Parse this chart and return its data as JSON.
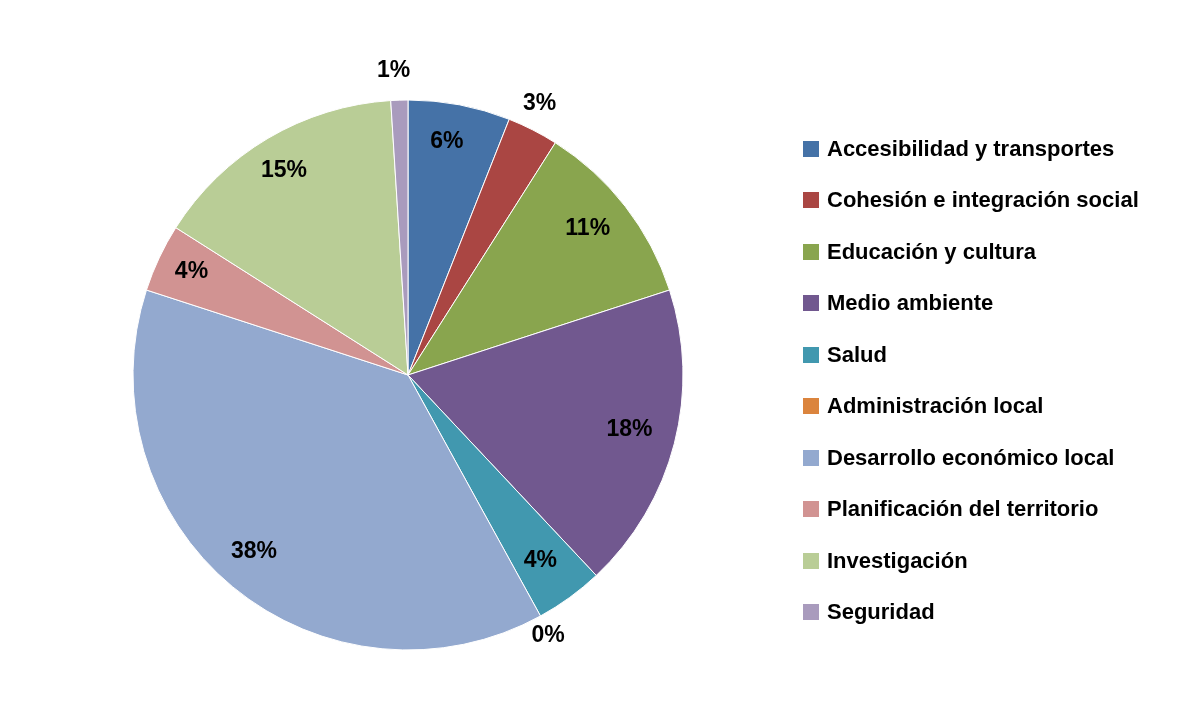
{
  "chart_data": {
    "type": "pie",
    "categories": [
      "Accesibilidad y transportes",
      "Cohesión e integración social",
      "Educación y cultura",
      "Medio ambiente",
      "Salud",
      "Administración local",
      "Desarrollo económico local",
      "Planificación del territorio",
      "Investigación",
      "Seguridad"
    ],
    "values": [
      6,
      3,
      11,
      18,
      4,
      0,
      38,
      4,
      15,
      1
    ],
    "value_labels": [
      "6%",
      "3%",
      "11%",
      "18%",
      "4%",
      "0%",
      "38%",
      "4%",
      "15%",
      "1%"
    ],
    "colors": [
      "#4572a7",
      "#aa4643",
      "#89a54e",
      "#71588f",
      "#4198af",
      "#db843d",
      "#93a9cf",
      "#d19392",
      "#b9cd96",
      "#a99bbd"
    ],
    "legend": "right"
  }
}
